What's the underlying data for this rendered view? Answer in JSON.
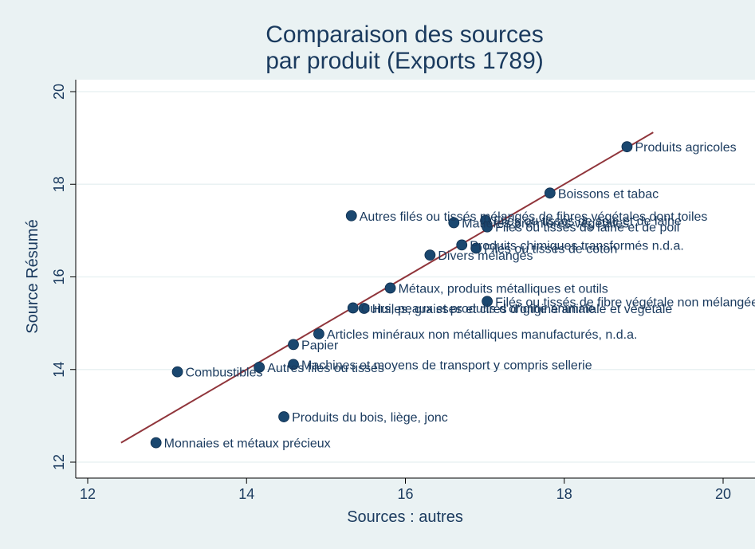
{
  "chart_data": {
    "type": "scatter",
    "title_line1": "Comparaison des sources",
    "title_line2": "par produit (Exports 1789)",
    "xlabel": "Sources : autres",
    "ylabel": "Source Résumé",
    "xlim": [
      12,
      20
    ],
    "ylim": [
      12,
      20
    ],
    "xticks": [
      12,
      14,
      16,
      18,
      20
    ],
    "yticks": [
      12,
      14,
      16,
      18,
      20
    ],
    "grid": "horizontal",
    "colors": {
      "background": "#eaf2f3",
      "plot": "#ffffff",
      "marker": "#1a476f",
      "fit_line": "#90353b",
      "text": "#1a3a5e"
    },
    "fit_line": {
      "x": [
        12.42,
        19.12
      ],
      "y": [
        12.42,
        19.12
      ]
    },
    "points": [
      {
        "x": 18.79,
        "y": 18.81,
        "label": "Produits agricoles"
      },
      {
        "x": 17.82,
        "y": 17.81,
        "label": "Boissons et tabac"
      },
      {
        "x": 15.32,
        "y": 17.32,
        "label": "Autres filés ou tissés mélangés de fibres végétales dont toiles"
      },
      {
        "x": 16.61,
        "y": 17.17,
        "label": "Matières premières végétales"
      },
      {
        "x": 17.01,
        "y": 17.22,
        "label": "Filés ou tissés de soie et de laine"
      },
      {
        "x": 17.03,
        "y": 17.08,
        "label": "Filés ou tissés de laine et de poil"
      },
      {
        "x": 16.71,
        "y": 16.69,
        "label": "Produits chimiques transformés n.d.a."
      },
      {
        "x": 16.89,
        "y": 16.62,
        "label": "Filés ou tissés de coton"
      },
      {
        "x": 16.31,
        "y": 16.47,
        "label": "Divers mélangés"
      },
      {
        "x": 15.81,
        "y": 15.76,
        "label": "Métaux, produits métalliques et outils"
      },
      {
        "x": 17.03,
        "y": 15.47,
        "label": "Filés ou tissés de fibre végétale non mélangée"
      },
      {
        "x": 15.34,
        "y": 15.33,
        "label": "Cuirs, peaux et produits d'origine animale"
      },
      {
        "x": 15.48,
        "y": 15.32,
        "label": "Huiles, graisses et cires d'origine animale et végétale"
      },
      {
        "x": 14.91,
        "y": 14.77,
        "label": "Articles minéraux non métalliques manufacturés, n.d.a."
      },
      {
        "x": 14.59,
        "y": 14.54,
        "label": "Papier"
      },
      {
        "x": 14.59,
        "y": 14.11,
        "label": "Machines et moyens de transport y compris sellerie"
      },
      {
        "x": 14.16,
        "y": 14.05,
        "label": "Autres filés ou tissés"
      },
      {
        "x": 13.13,
        "y": 13.95,
        "label": "Combustibles"
      },
      {
        "x": 14.47,
        "y": 12.98,
        "label": "Produits du bois, liège, jonc"
      },
      {
        "x": 12.86,
        "y": 12.42,
        "label": "Monnaies et métaux précieux"
      }
    ]
  }
}
